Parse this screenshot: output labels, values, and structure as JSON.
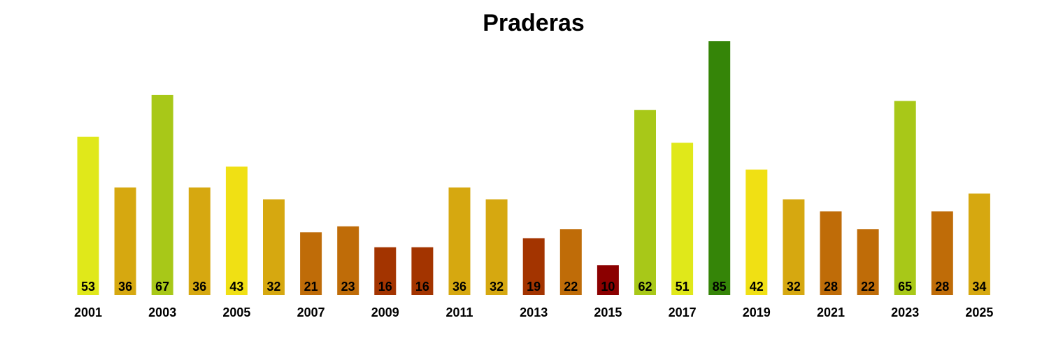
{
  "chart_data": {
    "type": "bar",
    "title": "Praderas",
    "xlabel": "",
    "ylabel": "",
    "categories": [
      "2001",
      "2002",
      "2003",
      "2004",
      "2005",
      "2006",
      "2007",
      "2008",
      "2009",
      "2010",
      "2011",
      "2012",
      "2013",
      "2014",
      "2015",
      "2016",
      "2017",
      "2018",
      "2019",
      "2020",
      "2021",
      "2022",
      "2023",
      "2024",
      "2025"
    ],
    "values": [
      53,
      36,
      67,
      36,
      43,
      32,
      21,
      23,
      16,
      16,
      36,
      32,
      19,
      22,
      10,
      62,
      51,
      85,
      42,
      32,
      28,
      22,
      65,
      28,
      34
    ],
    "tick_labels": [
      "2001",
      "2003",
      "2005",
      "2007",
      "2009",
      "2011",
      "2013",
      "2015",
      "2017",
      "2019",
      "2021",
      "2023",
      "2025"
    ],
    "data_labels_shown": true,
    "ylim": [
      0,
      85
    ],
    "grid": false,
    "legend": "none",
    "bar_colors": [
      "#e0e81a",
      "#d6a810",
      "#a8c818",
      "#d6a810",
      "#f0e014",
      "#d6a810",
      "#bf6c08",
      "#bf6c08",
      "#a33400",
      "#a33400",
      "#d6a810",
      "#d6a810",
      "#a33400",
      "#bf6c08",
      "#8b0000",
      "#a8c818",
      "#e0e81a",
      "#358508",
      "#f0e014",
      "#d6a810",
      "#bf6c08",
      "#bf6c08",
      "#a8c818",
      "#bf6c08",
      "#d6a810"
    ]
  }
}
